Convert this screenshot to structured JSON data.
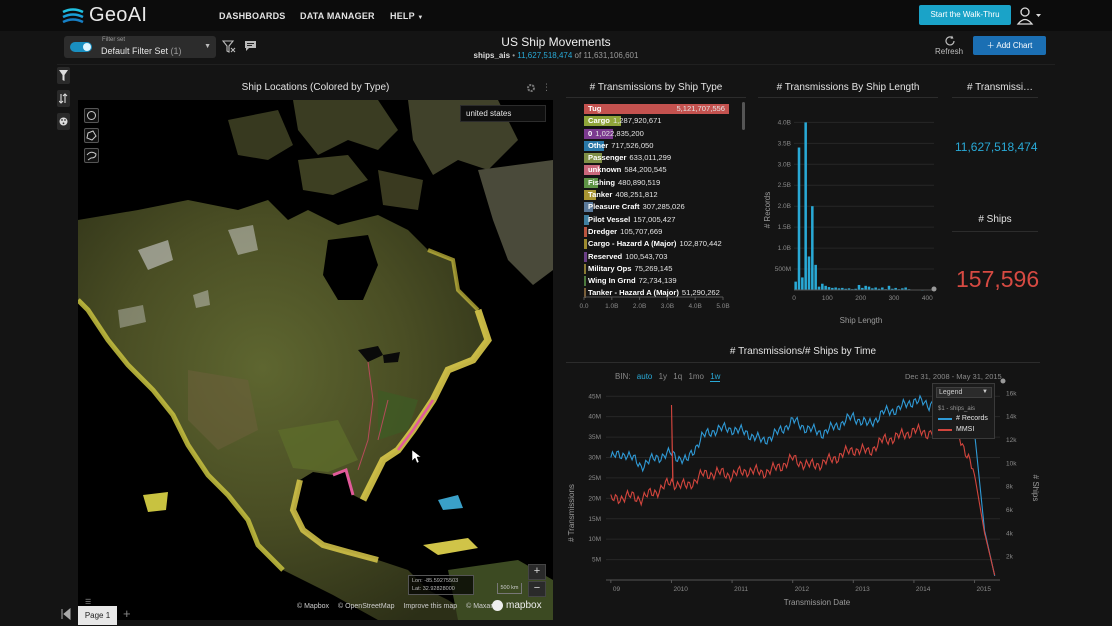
{
  "nav": {
    "logo_text": "GeoAI",
    "links": [
      "DASHBOARDS",
      "DATA MANAGER",
      "HELP"
    ],
    "walkthru_label": "Start the Walk-Thru"
  },
  "header": {
    "filter_caption": "Filter set",
    "filter_name": "Default Filter Set",
    "filter_count": "(1)",
    "title": "US Ship Movements",
    "table": "ships_ais",
    "filtered_count": "11,627,518,474",
    "of_text": "of",
    "total_count": "11,631,106,601",
    "refresh_label": "Refresh",
    "add_chart_label": "Add Chart"
  },
  "map": {
    "title": "Ship Locations (Colored by Type)",
    "search_value": "united states",
    "zoom_in": "+",
    "zoom_out": "−",
    "lon": "Lon: -85.59275503",
    "lat": "Lat: 32.92828000",
    "scale": "500 km",
    "credits": [
      "© Mapbox",
      "© OpenStreetMap",
      "Improve this map",
      "© Maxar"
    ],
    "mapbox_logo": "mapbox"
  },
  "pagebar": {
    "page_label": "Page 1",
    "add": "+"
  },
  "type_chart": {
    "title": "# Transmissions by Ship Type",
    "rows": [
      {
        "label": "Tug",
        "value": "5,121,707,556",
        "n": 5.12,
        "color": "#c4524f"
      },
      {
        "label": "Cargo",
        "value": "1,287,920,671",
        "n": 1.29,
        "color": "#8fa53a"
      },
      {
        "label": "0",
        "value": "1,022,835,200",
        "n": 1.02,
        "color": "#7b3a8f"
      },
      {
        "label": "Other",
        "value": "717,526,050",
        "n": 0.72,
        "color": "#2a78a8"
      },
      {
        "label": "Passenger",
        "value": "633,011,299",
        "n": 0.63,
        "color": "#7f8f46"
      },
      {
        "label": "unknown",
        "value": "584,200,545",
        "n": 0.58,
        "color": "#c9677b"
      },
      {
        "label": "Fishing",
        "value": "480,890,519",
        "n": 0.48,
        "color": "#5e9446"
      },
      {
        "label": "Tanker",
        "value": "408,251,812",
        "n": 0.41,
        "color": "#a89432"
      },
      {
        "label": "Pleasure Craft",
        "value": "307,285,026",
        "n": 0.31,
        "color": "#5b7a9a"
      },
      {
        "label": "Pilot Vessel",
        "value": "157,005,427",
        "n": 0.16,
        "color": "#3f7fa0"
      },
      {
        "label": "Dredger",
        "value": "105,707,669",
        "n": 0.11,
        "color": "#b9543f"
      },
      {
        "label": "Cargo - Hazard A (Major)",
        "value": "102,870,442",
        "n": 0.1,
        "color": "#9c8a2f"
      },
      {
        "label": "Reserved",
        "value": "100,543,703",
        "n": 0.1,
        "color": "#6a3f86"
      },
      {
        "label": "Military Ops",
        "value": "75,269,145",
        "n": 0.075,
        "color": "#8a7a34"
      },
      {
        "label": "Wing In Grnd",
        "value": "72,734,139",
        "n": 0.073,
        "color": "#4d7a3e"
      },
      {
        "label": "Tanker - Hazard A (Major)",
        "value": "51,290,262",
        "n": 0.051,
        "color": "#7a5f3a"
      }
    ],
    "axis_ticks": [
      "0.0",
      "1.0B",
      "2.0B",
      "3.0B",
      "4.0B",
      "5.0B"
    ]
  },
  "length_chart": {
    "title": "# Transmissions By Ship Length",
    "xlabel": "Ship Length",
    "ylabel": "# Records",
    "yticks": [
      "500M",
      "1.0B",
      "1.5B",
      "2.0B",
      "2.5B",
      "3.0B",
      "3.5B",
      "4.0B"
    ],
    "xticks": [
      "0",
      "100",
      "200",
      "300",
      "400"
    ]
  },
  "number1": {
    "title": "# Transmissi…",
    "value": "11,627,518,474"
  },
  "number2": {
    "title": "# Ships",
    "value": "157,596"
  },
  "line_chart": {
    "title": "# Transmissions/# Ships by Time",
    "bin_label": "BIN:",
    "bins": [
      "auto",
      "1y",
      "1q",
      "1mo",
      "1w"
    ],
    "date_range": "Dec 31, 2008 - May 31, 2015",
    "legend_select": "Legend",
    "legend_table": "$1 - ships_ais",
    "ylabel": "# Transmissions",
    "y2label": "# Ships",
    "xlabel": "Transmission Date",
    "yticks_left": [
      "5M",
      "10M",
      "15M",
      "20M",
      "25M",
      "30M",
      "35M",
      "40M",
      "45M"
    ],
    "yticks_right": [
      "2k",
      "4k",
      "6k",
      "8k",
      "10k",
      "12k",
      "14k",
      "16k"
    ],
    "xticks": [
      "09",
      "2010",
      "2011",
      "2012",
      "2013",
      "2014",
      "2015"
    ],
    "series": [
      {
        "name": "# Records",
        "color": "#2f9ad6"
      },
      {
        "name": "MMSI",
        "color": "#d2453d"
      }
    ]
  },
  "chart_data": [
    {
      "type": "bar",
      "title": "# Transmissions by Ship Type",
      "categories": [
        "Tug",
        "Cargo",
        "0",
        "Other",
        "Passenger",
        "unknown",
        "Fishing",
        "Tanker",
        "Pleasure Craft",
        "Pilot Vessel",
        "Dredger",
        "Cargo - Hazard A (Major)",
        "Reserved",
        "Military Ops",
        "Wing In Grnd",
        "Tanker - Hazard A (Major)"
      ],
      "values": [
        5121707556,
        1287920671,
        1022835200,
        717526050,
        633011299,
        584200545,
        480890519,
        408251812,
        307285026,
        157005427,
        105707669,
        102870442,
        100543703,
        75269145,
        72734139,
        51290262
      ],
      "xlim": [
        0,
        5000000000
      ]
    },
    {
      "type": "bar",
      "title": "# Transmissions By Ship Length",
      "xlabel": "Ship Length",
      "ylabel": "# Records",
      "x": [
        5,
        15,
        25,
        35,
        45,
        55,
        65,
        75,
        85,
        95,
        105,
        115,
        125,
        135,
        145,
        155,
        165,
        175,
        185,
        195,
        205,
        215,
        225,
        235,
        245,
        255,
        265,
        275,
        285,
        295,
        305,
        315,
        325,
        335,
        345,
        355,
        365,
        375,
        385,
        395
      ],
      "values": [
        0.2,
        3.4,
        0.3,
        4.0,
        0.8,
        2.0,
        0.6,
        0.08,
        0.15,
        0.1,
        0.07,
        0.05,
        0.06,
        0.04,
        0.05,
        0.03,
        0.04,
        0.02,
        0.03,
        0.12,
        0.05,
        0.1,
        0.08,
        0.04,
        0.06,
        0.03,
        0.06,
        0.02,
        0.1,
        0.03,
        0.05,
        0.02,
        0.04,
        0.06,
        0.02,
        0.01,
        0.01,
        0.01,
        0.0,
        0.01
      ],
      "yunit": "billions",
      "ylim": [
        0,
        4.2
      ],
      "xlim": [
        0,
        420
      ]
    },
    {
      "type": "line",
      "title": "# Transmissions/# Ships by Time",
      "xlabel": "Transmission Date",
      "ylabel": "# Transmissions",
      "x": [
        "2009-01",
        "2009-04",
        "2009-07",
        "2009-10",
        "2010-01",
        "2010-04",
        "2010-07",
        "2010-10",
        "2011-01",
        "2011-04",
        "2011-07",
        "2011-10",
        "2012-01",
        "2012-04",
        "2012-07",
        "2012-10",
        "2013-01",
        "2013-04",
        "2013-07",
        "2013-10",
        "2014-01",
        "2014-04",
        "2014-07",
        "2014-10",
        "2015-01",
        "2015-03",
        "2015-05"
      ],
      "series": [
        {
          "name": "# Records",
          "axis": "left",
          "values": [
            30,
            31,
            28,
            30,
            31,
            29,
            35,
            37,
            37,
            36,
            34,
            36,
            39,
            37,
            36,
            38,
            40,
            38,
            41,
            42,
            44,
            43,
            45,
            41,
            36,
            12,
            1
          ]
        },
        {
          "name": "MMSI",
          "axis": "right",
          "values": [
            6800,
            7200,
            7000,
            7600,
            8400,
            8000,
            9000,
            9200,
            9000,
            9400,
            9200,
            9600,
            10400,
            9800,
            10000,
            10600,
            11200,
            11000,
            12000,
            12300,
            12800,
            12600,
            13200,
            12400,
            9000,
            4000,
            400
          ]
        }
      ],
      "ylim": [
        0,
        48
      ],
      "yunit": "M",
      "y2lim": [
        0,
        16800
      ]
    }
  ]
}
